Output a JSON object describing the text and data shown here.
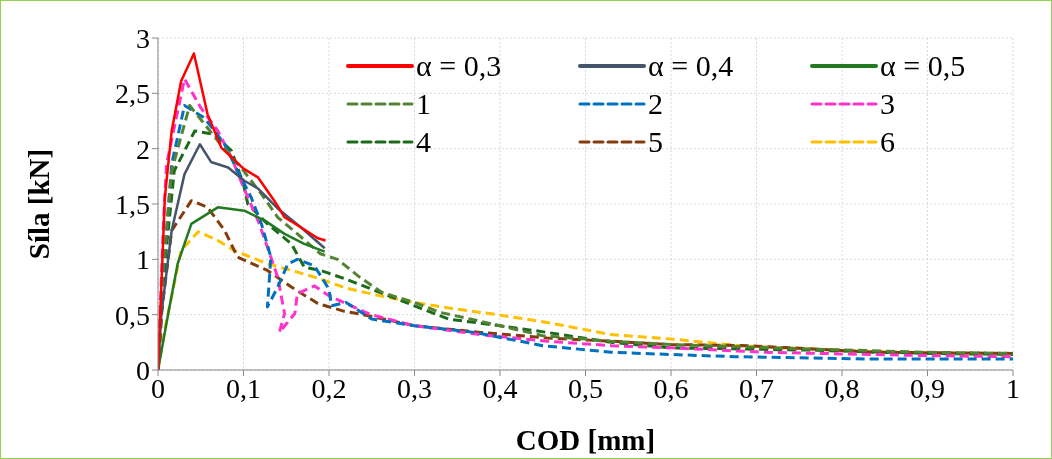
{
  "chart_data": {
    "type": "line",
    "xlabel": "COD [mm]",
    "ylabel": "Síla [kN]",
    "xlim": [
      0,
      1
    ],
    "xticks": [
      0,
      {
        "value": 0.1,
        "label": "0,1"
      },
      {
        "value": 0.2,
        "label": "0,2"
      },
      {
        "value": 0.3,
        "label": "0,3"
      },
      {
        "value": 0.4,
        "label": "0,4"
      },
      {
        "value": 0.5,
        "label": "0,5"
      },
      {
        "value": 0.6,
        "label": "0,6"
      },
      {
        "value": 0.7,
        "label": "0,7"
      },
      {
        "value": 0.8,
        "label": "0,8"
      },
      {
        "value": 0.9,
        "label": "0,9"
      },
      1
    ],
    "ylim": [
      0,
      3
    ],
    "yticks": [
      0,
      {
        "value": 0.5,
        "label": "0,5"
      },
      1,
      {
        "value": 1.5,
        "label": "1,5"
      },
      2,
      {
        "value": 2.5,
        "label": "2,5"
      },
      3
    ],
    "grid": true,
    "legend": "top right",
    "marker": "none",
    "series": [
      {
        "name": "α = 0,3",
        "color": "#ff0000",
        "line_style": "solid",
        "x": [
          0,
          0.008,
          0.016,
          0.027,
          0.042,
          0.058,
          0.074,
          0.1,
          0.117,
          0.136,
          0.148,
          0.167,
          0.187,
          0.196
        ],
        "values": [
          0,
          1.56,
          2.16,
          2.61,
          2.86,
          2.31,
          2.01,
          1.82,
          1.74,
          1.53,
          1.38,
          1.29,
          1.19,
          1.17
        ]
      },
      {
        "name": "α = 0,4",
        "color": "#44546a",
        "line_style": "solid",
        "x": [
          0,
          0.004,
          0.016,
          0.031,
          0.049,
          0.062,
          0.082,
          0.101,
          0.117,
          0.14,
          0.167,
          0.195
        ],
        "values": [
          0,
          0.51,
          1.26,
          1.77,
          2.04,
          1.88,
          1.83,
          1.71,
          1.64,
          1.46,
          1.29,
          1.1
        ]
      },
      {
        "name": "α = 0,5",
        "color": "#217a21",
        "line_style": "solid",
        "x": [
          0,
          0.012,
          0.023,
          0.039,
          0.07,
          0.101,
          0.125,
          0.148,
          0.171,
          0.195
        ],
        "values": [
          0,
          0.51,
          0.96,
          1.32,
          1.47,
          1.44,
          1.35,
          1.23,
          1.14,
          1.07
        ]
      },
      {
        "name": "1",
        "color": "#548235",
        "line_style": "dashed",
        "x": [
          0,
          0.006,
          0.016,
          0.037,
          0.07,
          0.097,
          0.121,
          0.14,
          0.163,
          0.19,
          0.21,
          0.234,
          0.262,
          0.3,
          0.33,
          0.36,
          0.4,
          0.45,
          0.53,
          0.6,
          0.76,
          0.9,
          1
        ],
        "values": [
          0,
          0.9,
          1.8,
          2.39,
          2.07,
          1.83,
          1.59,
          1.38,
          1.23,
          1.05,
          1.0,
          0.85,
          0.7,
          0.61,
          0.52,
          0.47,
          0.4,
          0.31,
          0.26,
          0.23,
          0.19,
          0.16,
          0.15
        ]
      },
      {
        "name": "2",
        "color": "#0070c0",
        "line_style": "dashed",
        "x": [
          0,
          0.004,
          0.016,
          0.031,
          0.054,
          0.078,
          0.093,
          0.109,
          0.121,
          0.132,
          0.128,
          0.14,
          0.152,
          0.163,
          0.183,
          0.2,
          0.203,
          0.22,
          0.25,
          0.3,
          0.37,
          0.45,
          0.53,
          0.6,
          0.675,
          0.83,
          1
        ],
        "values": [
          0,
          0.66,
          1.86,
          2.39,
          2.28,
          2.04,
          1.8,
          1.56,
          1.32,
          1.02,
          0.57,
          0.75,
          0.96,
          1.0,
          0.94,
          0.73,
          0.58,
          0.61,
          0.46,
          0.4,
          0.34,
          0.22,
          0.16,
          0.14,
          0.12,
          0.1,
          0.1
        ]
      },
      {
        "name": "3",
        "color": "#ff33cc",
        "line_style": "dashed",
        "x": [
          0,
          0.006,
          0.01,
          0.031,
          0.05,
          0.07,
          0.086,
          0.1,
          0.117,
          0.128,
          0.14,
          0.148,
          0.142,
          0.16,
          0.163,
          0.183,
          0.2,
          0.249,
          0.3,
          0.377,
          0.455,
          0.53,
          0.6,
          0.71,
          0.9,
          1
        ],
        "values": [
          0,
          1.26,
          1.86,
          2.63,
          2.37,
          2.16,
          1.92,
          1.65,
          1.35,
          1.11,
          0.84,
          0.51,
          0.34,
          0.51,
          0.69,
          0.76,
          0.67,
          0.5,
          0.4,
          0.32,
          0.26,
          0.22,
          0.2,
          0.16,
          0.13,
          0.12
        ]
      },
      {
        "name": "4",
        "color": "#1a6b1a",
        "line_style": "dashed",
        "x": [
          0,
          0.008,
          0.019,
          0.043,
          0.066,
          0.086,
          0.1,
          0.105,
          0.128,
          0.156,
          0.171,
          0.19,
          0.22,
          0.26,
          0.3,
          0.34,
          0.4,
          0.455,
          0.53,
          0.6,
          0.76,
          0.9,
          1
        ],
        "values": [
          0,
          0.96,
          1.8,
          2.16,
          2.13,
          1.98,
          1.68,
          1.5,
          1.32,
          1.14,
          0.93,
          0.9,
          0.82,
          0.7,
          0.58,
          0.46,
          0.4,
          0.34,
          0.25,
          0.2,
          0.18,
          0.15,
          0.14
        ]
      },
      {
        "name": "5",
        "color": "#843c0c",
        "line_style": "dashed",
        "x": [
          0,
          0.004,
          0.016,
          0.039,
          0.058,
          0.078,
          0.093,
          0.128,
          0.156,
          0.187,
          0.218,
          0.24,
          0.3,
          0.377,
          0.455,
          0.53,
          0.6,
          0.69,
          0.84,
          1
        ],
        "values": [
          0,
          0.51,
          1.26,
          1.53,
          1.47,
          1.26,
          1.02,
          0.9,
          0.75,
          0.6,
          0.53,
          0.5,
          0.4,
          0.34,
          0.29,
          0.26,
          0.23,
          0.22,
          0.16,
          0.15
        ]
      },
      {
        "name": "6",
        "color": "#ffc000",
        "line_style": "dashed",
        "x": [
          0,
          0.008,
          0.027,
          0.047,
          0.07,
          0.089,
          0.128,
          0.156,
          0.187,
          0.22,
          0.26,
          0.3,
          0.34,
          0.397,
          0.455,
          0.53,
          0.6,
          0.68,
          0.79,
          0.9,
          1
        ],
        "values": [
          0,
          0.37,
          1.08,
          1.25,
          1.17,
          1.08,
          0.96,
          0.9,
          0.83,
          0.74,
          0.67,
          0.61,
          0.56,
          0.5,
          0.43,
          0.32,
          0.28,
          0.22,
          0.18,
          0.15,
          0.12
        ]
      }
    ]
  }
}
